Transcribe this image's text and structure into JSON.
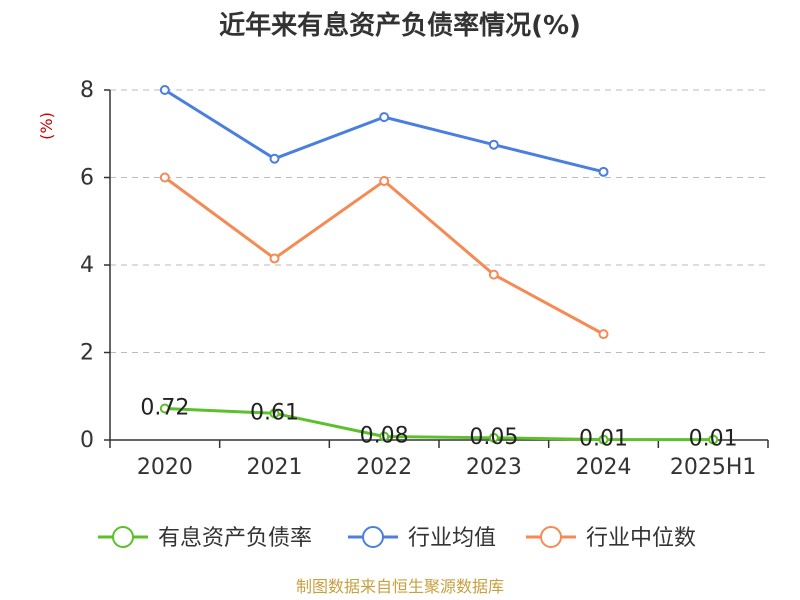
{
  "chart_data": {
    "type": "line",
    "title": "近年来有息资产负债率情况(%)",
    "ylabel": "(%)",
    "categories": [
      "2020",
      "2021",
      "2022",
      "2023",
      "2024",
      "2025H1"
    ],
    "yticks": [
      "0",
      "2",
      "4",
      "6",
      "8"
    ],
    "ylim": [
      0,
      8
    ],
    "grid": true,
    "legend_position": "bottom",
    "series": [
      {
        "name": "有息资产负债率",
        "color": "#5cc02a",
        "values": [
          0.72,
          0.61,
          0.08,
          0.05,
          0.01,
          0.01
        ],
        "labels": [
          "0.72",
          "0.61",
          "0.08",
          "0.05",
          "0.01",
          "0.01"
        ]
      },
      {
        "name": "行业均值",
        "color": "#4a7fe0",
        "values": [
          8.0,
          6.43,
          7.38,
          6.75,
          6.13,
          null
        ]
      },
      {
        "name": "行业中位数",
        "color": "#f58a55",
        "values": [
          6.0,
          4.15,
          5.92,
          3.78,
          2.42,
          null
        ]
      }
    ]
  },
  "source": "制图数据来自恒生聚源数据库"
}
